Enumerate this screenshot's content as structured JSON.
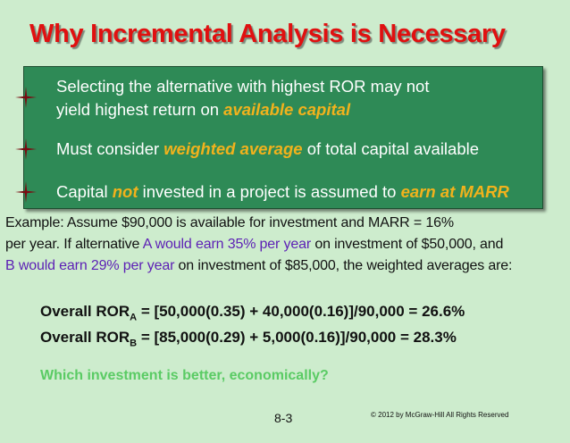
{
  "title": "Why Incremental Analysis is Necessary",
  "bullets": [
    {
      "line1": "Selecting the alternative with highest ROR may not",
      "line2_prefix": "yield highest return on ",
      "line2_emph": "available capital"
    },
    {
      "prefix": "Must consider ",
      "emph": "weighted average",
      "suffix": " of total capital available"
    },
    {
      "prefix": "Capital ",
      "emph1": "not",
      "middle": " invested in a project is assumed to ",
      "emph2": "earn at MARR"
    }
  ],
  "example": {
    "line1": "Example: Assume $90,000 is available for investment and MARR = 16%",
    "line2_prefix": "per year. If alternative ",
    "line2_purple": "A would earn 35% per year",
    "line2_suffix": " on investment of $50,000, and",
    "line3_purple": "B would earn 29% per year",
    "line3_suffix": " on investment of $85,000, the weighted averages are:"
  },
  "formulas": [
    {
      "label": "Overall ROR",
      "sub": "A",
      "expr": " = [50,000(0.35) + 40,000(0.16)]/90,000 = 26.6%"
    },
    {
      "label": "Overall ROR",
      "sub": "B",
      "expr": " = [85,000(0.29) + 5,000(0.16)]/90,000 = 28.3%"
    }
  ],
  "question": "Which investment is better, economically?",
  "page_number": "8-3",
  "copyright": "© 2012 by McGraw-Hill     All Rights Reserved",
  "colors": {
    "title": "#e01010",
    "box": "#2e8a56",
    "emphasis": "#f2b21c",
    "purple": "#5c1fb5",
    "question": "#5acb64",
    "background": "#cdeccd"
  },
  "icons": {
    "bullet": "four-point-star-icon"
  }
}
